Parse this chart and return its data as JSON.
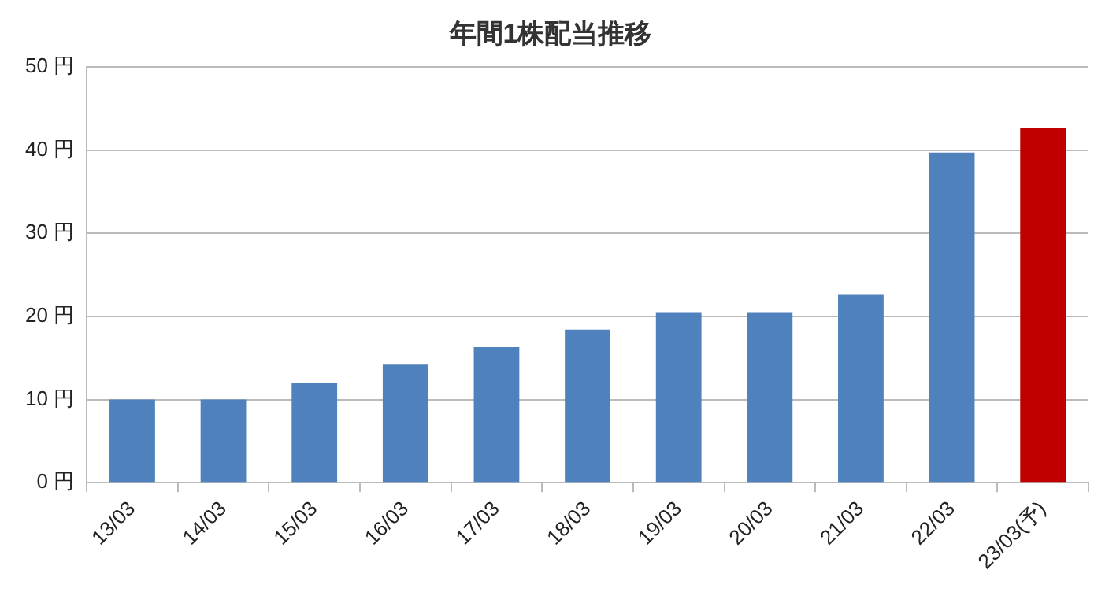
{
  "chart_data": {
    "type": "bar",
    "title": "年間1株配当推移",
    "categories": [
      "13/03",
      "14/03",
      "15/03",
      "16/03",
      "17/03",
      "18/03",
      "19/03",
      "20/03",
      "21/03",
      "22/03",
      "23/03(予)"
    ],
    "values": [
      10,
      10,
      12,
      14.2,
      16.3,
      18.4,
      20.5,
      20.5,
      22.6,
      39.7,
      42.6
    ],
    "colors": [
      "#4f81bd",
      "#4f81bd",
      "#4f81bd",
      "#4f81bd",
      "#4f81bd",
      "#4f81bd",
      "#4f81bd",
      "#4f81bd",
      "#4f81bd",
      "#4f81bd",
      "#c00000"
    ],
    "ylim": [
      0,
      50
    ],
    "yticks": [
      {
        "value": 0,
        "label": "0 円"
      },
      {
        "value": 10,
        "label": "10 円"
      },
      {
        "value": 20,
        "label": "20 円"
      },
      {
        "value": 30,
        "label": "30 円"
      },
      {
        "value": 40,
        "label": "40 円"
      },
      {
        "value": 50,
        "label": "50 円"
      }
    ],
    "grid": "y",
    "legend": false
  }
}
